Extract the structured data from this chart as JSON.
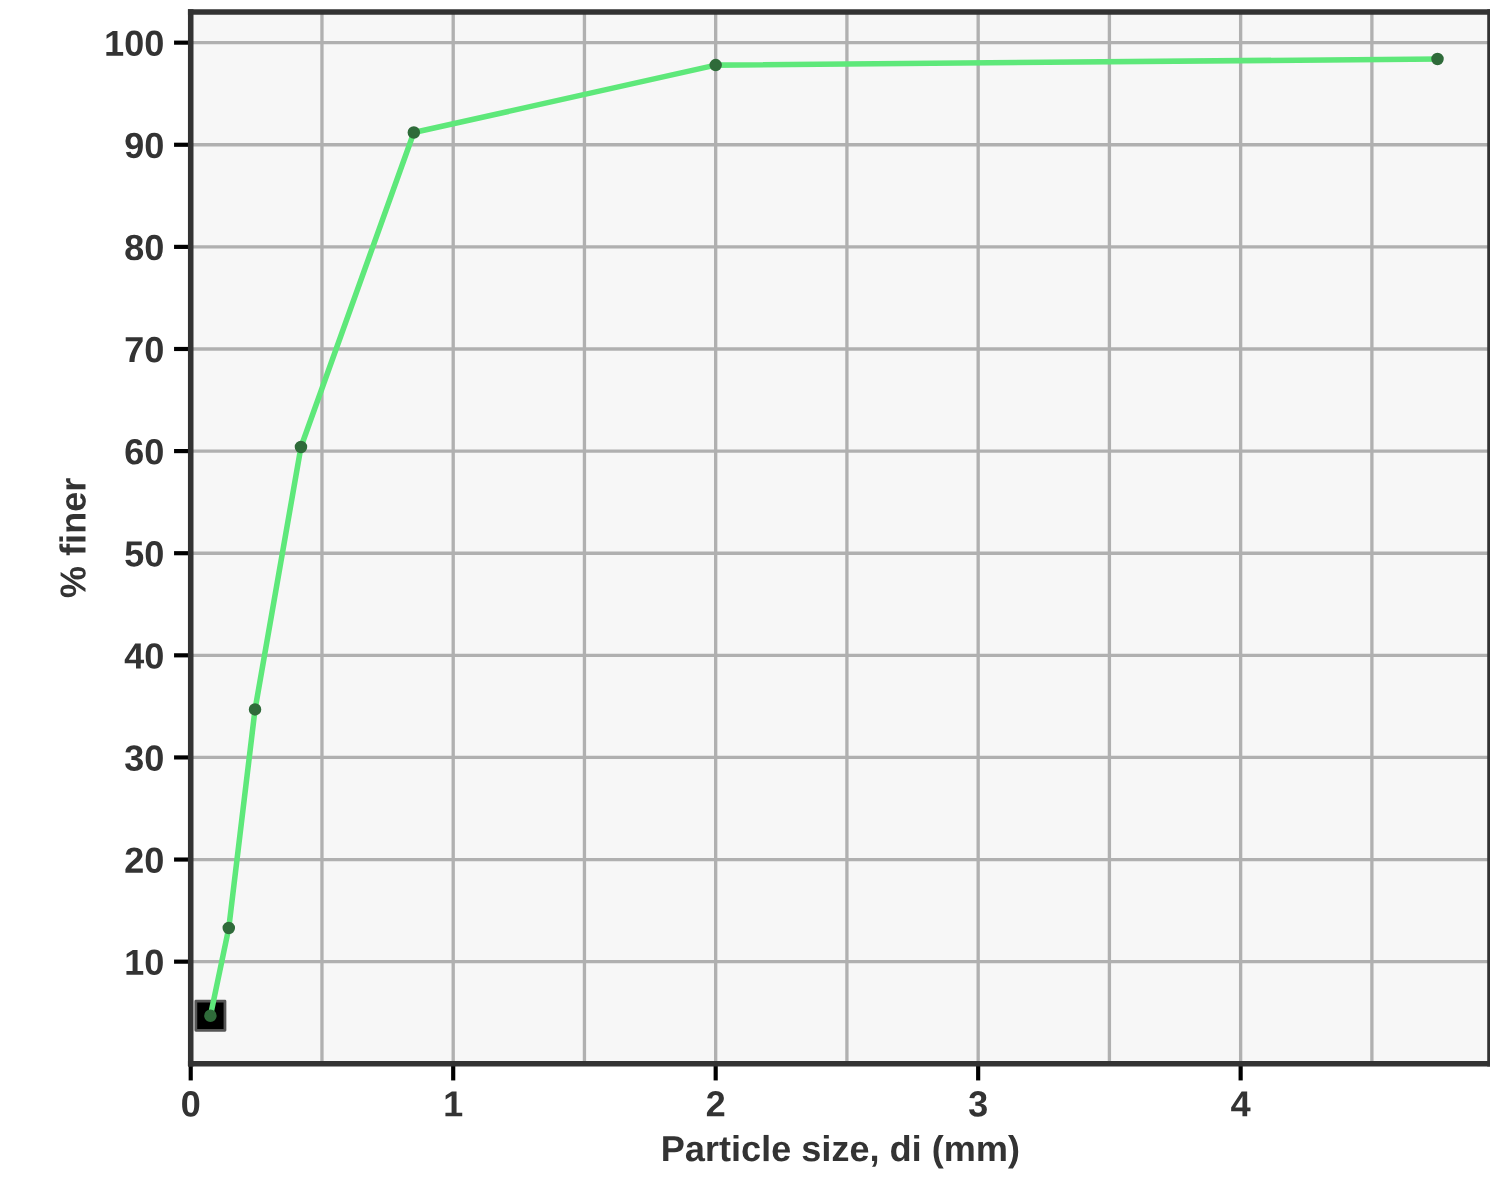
{
  "chart_data": {
    "type": "line",
    "xlabel": "Particle size, di (mm)",
    "ylabel": "% finer",
    "xlim": [
      0,
      4.95
    ],
    "ylim": [
      0,
      103
    ],
    "xticks": [
      0,
      {
        "value": 0.5,
        "label": null
      },
      1,
      {
        "value": 1.5,
        "label": null
      },
      2,
      {
        "value": 2.5,
        "label": null
      },
      3,
      {
        "value": 3.5,
        "label": null
      },
      4,
      {
        "value": 4.5,
        "label": null
      }
    ],
    "yticks": [
      10,
      20,
      30,
      40,
      50,
      60,
      70,
      80,
      90,
      100
    ],
    "grid": true,
    "marker": "circle",
    "line_style": "solid",
    "series": [
      {
        "color": "#5ee87a",
        "x": [
          0.075,
          0.145,
          0.245,
          0.42,
          0.85,
          2.0,
          4.75
        ],
        "values": [
          4.7,
          13.3,
          34.7,
          60.4,
          91.2,
          97.8,
          98.4
        ]
      },
      {
        "type": "scatter",
        "marker": "square",
        "color": "#000000",
        "x": [
          0.075
        ],
        "values": [
          4.7
        ]
      }
    ]
  }
}
